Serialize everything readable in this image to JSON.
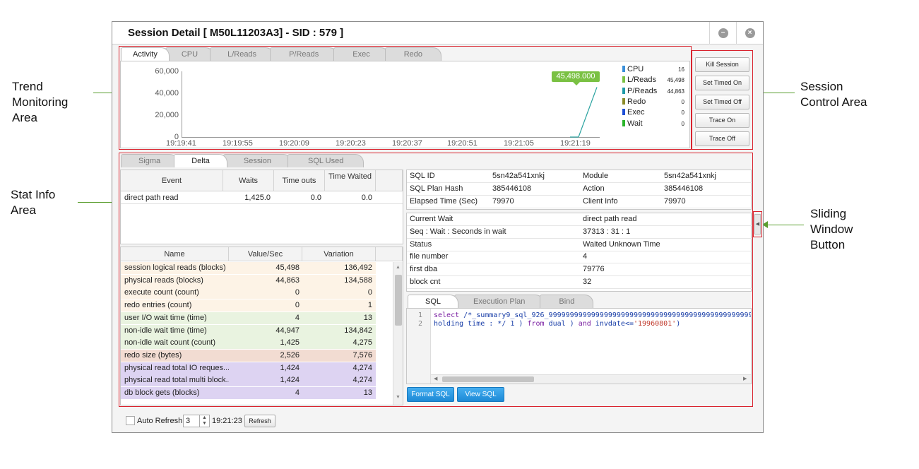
{
  "annotations": {
    "trend": [
      "Trend",
      "Monitoring",
      "Area"
    ],
    "session_control": [
      "Session",
      "Control Area"
    ],
    "stat_info": [
      "Stat Info",
      "Area"
    ],
    "sliding": [
      "Sliding",
      "Window",
      "Button"
    ]
  },
  "window": {
    "title": "Session Detail [ M50L11203A3] - SID : 579 ]"
  },
  "trend": {
    "tabs": [
      "Activity",
      "CPU",
      "L/Reads",
      "P/Reads",
      "Exec",
      "Redo"
    ],
    "callout": "45,498.000"
  },
  "chart_data": {
    "type": "line",
    "title": "",
    "ylim": [
      0,
      60000
    ],
    "y_ticks": [
      "60,000",
      "40,000",
      "20,000",
      "0"
    ],
    "x_ticks": [
      "19:19:41",
      "19:19:55",
      "19:20:09",
      "19:20:23",
      "19:20:37",
      "19:20:51",
      "19:21:05",
      "19:21:19"
    ],
    "series": [
      {
        "name": "L/Reads",
        "color": "#2aa3a0",
        "x": [
          "19:21:19",
          "19:21:25"
        ],
        "values": [
          0,
          45498
        ]
      }
    ],
    "legend": [
      {
        "name": "CPU",
        "value": "16",
        "color": "#3a8fd9"
      },
      {
        "name": "L/Reads",
        "value": "45,498",
        "color": "#7ac143"
      },
      {
        "name": "P/Reads",
        "value": "44,863",
        "color": "#1f9aa8"
      },
      {
        "name": "Redo",
        "value": "0",
        "color": "#8b8b2a"
      },
      {
        "name": "Exec",
        "value": "0",
        "color": "#1e4fd6"
      },
      {
        "name": "Wait",
        "value": "0",
        "color": "#2bb52b"
      }
    ]
  },
  "controls": [
    "Kill Session",
    "Set Timed On",
    "Set Timed Off",
    "Trace On",
    "Trace Off"
  ],
  "stat": {
    "tabs": [
      "Sigma",
      "Delta",
      "Session",
      "SQL Used"
    ],
    "event_headers": [
      "Event",
      "Waits",
      "Time outs",
      "Time Waited"
    ],
    "event_rows": [
      {
        "event": "direct path read",
        "waits": "1,425.0",
        "timeouts": "0.0",
        "waited": "0.0"
      }
    ],
    "stat_headers": [
      "Name",
      "Value/Sec",
      "Variation"
    ],
    "stat_rows": [
      {
        "name": "session logical reads (blocks)",
        "value": "45,498",
        "variation": "136,492",
        "color": "#fdf3e6"
      },
      {
        "name": "physical reads (blocks)",
        "value": "44,863",
        "variation": "134,588",
        "color": "#fdf3e6"
      },
      {
        "name": "execute count (count)",
        "value": "0",
        "variation": "0",
        "color": "#fdf3e6"
      },
      {
        "name": "redo entries (count)",
        "value": "0",
        "variation": "1",
        "color": "#fdf3e6"
      },
      {
        "name": "user I/O wait time (time)",
        "value": "4",
        "variation": "13",
        "color": "#e9f3e0"
      },
      {
        "name": "non-idle wait time (time)",
        "value": "44,947",
        "variation": "134,842",
        "color": "#e9f3e0"
      },
      {
        "name": "non-idle wait count (count)",
        "value": "1,425",
        "variation": "4,275",
        "color": "#e9f3e0"
      },
      {
        "name": "redo size (bytes)",
        "value": "2,526",
        "variation": "7,576",
        "color": "#f2dcd2"
      },
      {
        "name": "physical read total IO reques...",
        "value": "1,424",
        "variation": "4,274",
        "color": "#ddd3f2"
      },
      {
        "name": "physical read total multi block...",
        "value": "1,424",
        "variation": "4,274",
        "color": "#ddd3f2"
      },
      {
        "name": "db block gets (blocks)",
        "value": "4",
        "variation": "13",
        "color": "#ddd3f2"
      }
    ]
  },
  "sql_info": [
    {
      "k1": "SQL ID",
      "v1": "5sn42a541xnkj",
      "k2": "Module",
      "v2": "5sn42a541xnkj"
    },
    {
      "k1": "SQL Plan Hash",
      "v1": "385446108",
      "k2": "Action",
      "v2": "385446108"
    },
    {
      "k1": "Elapsed Time (Sec)",
      "v1": "79970",
      "k2": "Client Info",
      "v2": "79970"
    }
  ],
  "wait_info": [
    {
      "k": "Current Wait",
      "v": "direct path read"
    },
    {
      "k": "Seq : Wait : Seconds in wait",
      "v": "37313 : 31 : 1"
    },
    {
      "k": "Status",
      "v": "Waited Unknown Time"
    },
    {
      "k": "file number",
      "v": "4"
    },
    {
      "k": "first dba",
      "v": "79776"
    },
    {
      "k": "block cnt",
      "v": "32"
    }
  ],
  "sql_tabs": [
    "SQL",
    "Execution Plan",
    "Bind"
  ],
  "sql_code": {
    "line1_no": "1",
    "line1_a": "select",
    "line1_b": " /*_summary9_sql_926_999999999999999999999999999999999999999999999999",
    "line2_no": "2",
    "line2_a": "holding time : */ 1 ) ",
    "line2_b": "from",
    "line2_c": " dual ) ",
    "line2_d": "and",
    "line2_e": " invdate<=",
    "line2_f": "'19960801'",
    "line2_g": ")"
  },
  "sql_buttons": [
    "Format SQL",
    "View SQL"
  ],
  "footer": {
    "auto_refresh": "Auto Refresh",
    "interval": "3",
    "time": "19:21:23",
    "refresh": "Refresh"
  }
}
